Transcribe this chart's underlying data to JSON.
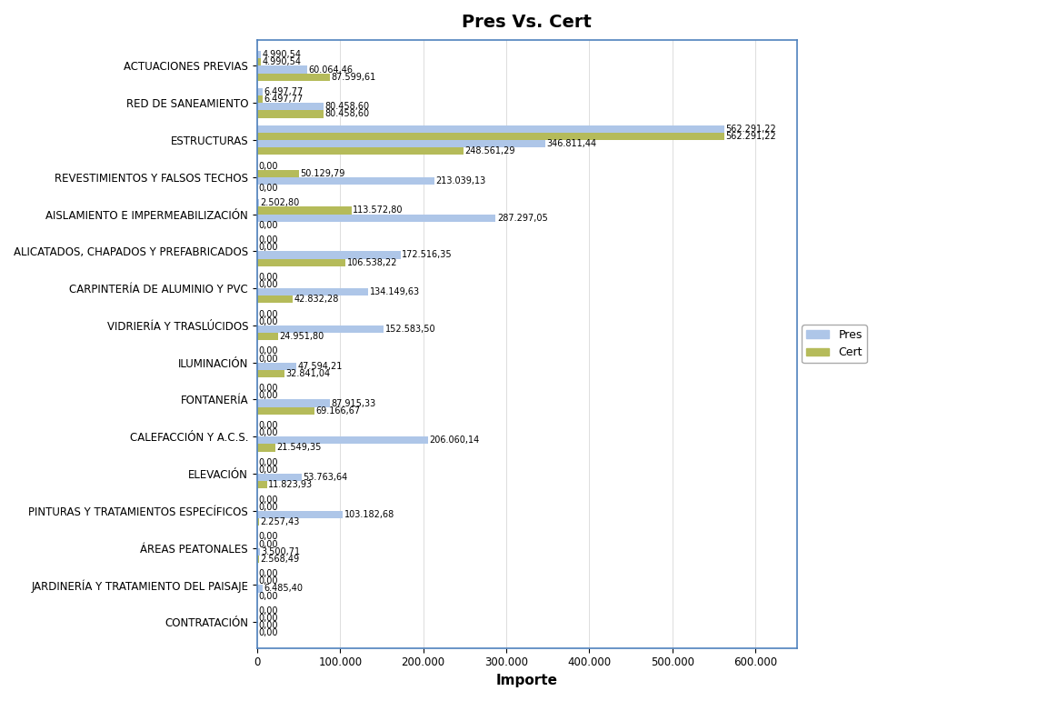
{
  "title": "Pres Vs. Cert",
  "xlabel": "Importe",
  "categories": [
    "CONTRATACIÓN",
    "JARDINERÍA Y TRATAMIENTO DEL PAISAJE",
    "ÁREAS PEATONALES",
    "PINTURAS Y TRATAMIENTOS ESPECÍFICOS",
    "ELEVACIÓN",
    "CALEFACCIÓN Y A.C.S.",
    "FONTANERÍA",
    "ILUMINACIÓN",
    "VIDRIERÍA Y TRASLÚCIDOS",
    "CARPINTERÍA DE ALUMINIO Y PVC",
    "ALICATADOS, CHAPADOS Y PREFABRICADOS",
    "AISLAMIENTO E IMPERMEABILIZACIÓN",
    "REVESTIMIENTOS Y FALSOS TECHOS",
    "ESTRUCTURAS",
    "RED DE SANEAMIENTO",
    "ACTUACIONES PREVIAS"
  ],
  "pres1_values": [
    0.0,
    0.0,
    0.0,
    0.0,
    0.0,
    0.0,
    0.0,
    0.0,
    0.0,
    0.0,
    0.0,
    2502.8,
    0.0,
    562291.22,
    6497.77,
    4990.54
  ],
  "cert1_values": [
    0.0,
    0.0,
    0.0,
    0.0,
    0.0,
    0.0,
    0.0,
    0.0,
    0.0,
    0.0,
    0.0,
    113572.8,
    50129.79,
    562291.22,
    6497.77,
    4990.54
  ],
  "pres2_values": [
    0.0,
    6485.4,
    3500.71,
    103182.68,
    53763.64,
    206060.14,
    87915.33,
    47594.21,
    152583.5,
    134149.63,
    172516.35,
    287297.05,
    213039.13,
    346811.44,
    80458.6,
    60064.46
  ],
  "cert2_values": [
    0.0,
    0.0,
    2568.49,
    2257.43,
    11823.93,
    21549.35,
    69166.67,
    32841.04,
    24951.8,
    42832.28,
    106538.22,
    0.0,
    0.0,
    248561.29,
    80458.6,
    87599.61
  ],
  "pres1_labels": [
    "0,00",
    "0,00",
    "0,00",
    "0,00",
    "0,00",
    "0,00",
    "0,00",
    "0,00",
    "0,00",
    "0,00",
    "0,00",
    "2.502,80",
    "0,00",
    "562.291,22",
    "6.497,77",
    "4.990,54"
  ],
  "cert1_labels": [
    "0,00",
    "0,00",
    "0,00",
    "0,00",
    "0,00",
    "0,00",
    "0,00",
    "0,00",
    "0,00",
    "0,00",
    "0,00",
    "113.572,80",
    "50.129,79",
    "562.291,22",
    "6.497,77",
    "4.990,54"
  ],
  "pres2_labels": [
    "0,00",
    "6.485,40",
    "3.500,71",
    "103.182,68",
    "53.763,64",
    "206.060,14",
    "87.915,33",
    "47.594,21",
    "152.583,50",
    "134.149,63",
    "172.516,35",
    "287.297,05",
    "213.039,13",
    "346.811,44",
    "80.458,60",
    "60.064,46"
  ],
  "cert2_labels": [
    "0,00",
    "0,00",
    "2.568,49",
    "2.257,43",
    "11.823,93",
    "21.549,35",
    "69.166,67",
    "32.841,04",
    "24.951,80",
    "42.832,28",
    "106.538,22",
    "0,00",
    "0,00",
    "248.561,29",
    "80.458,60",
    "87.599,61"
  ],
  "pres_color": "#aec6e8",
  "cert_color": "#b5bb5a",
  "background_color": "#ffffff",
  "plot_bg_color": "#ffffff",
  "border_color": "#4f81bd",
  "xlim": [
    0,
    650000
  ],
  "bar_height": 0.2,
  "title_fontsize": 14,
  "label_fontsize": 7.0,
  "tick_fontsize": 8.5,
  "legend_fontsize": 9
}
